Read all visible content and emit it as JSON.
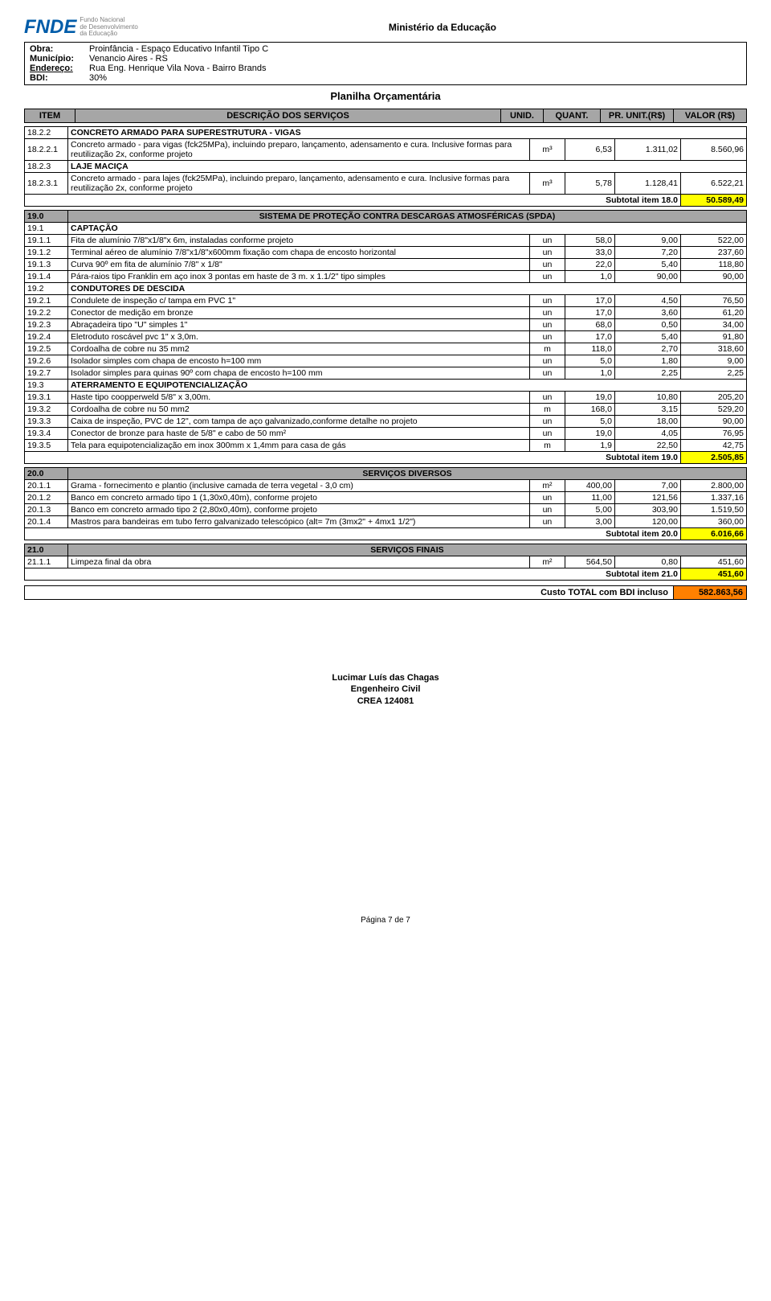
{
  "header": {
    "logo_mark": "FNDE",
    "logo_line1": "Fundo Nacional",
    "logo_line2": "de Desenvolvimento",
    "logo_line3": "da Educação",
    "ministry": "Ministério da Educação"
  },
  "project": {
    "obra_label": "Obra:",
    "obra": "Proinfância - Espaço Educativo Infantil Tipo C",
    "municipio_label": "Município:",
    "municipio": "Venancio Aires - RS",
    "endereco_label": "Endereço:",
    "endereco": "Rua Eng. Henrique Vila Nova - Bairro Brands",
    "bdi_label": "BDI:",
    "bdi": "30%"
  },
  "doc_title": "Planilha Orçamentária",
  "columns": {
    "item": "ITEM",
    "desc": "DESCRIÇÃO DOS SERVIÇOS",
    "unid": "UNID.",
    "quant": "QUANT.",
    "pr": "PR. UNIT.(R$)",
    "valor": "VALOR (R$)"
  },
  "group18": {
    "rows": [
      {
        "type": "section",
        "item": "18.2.2",
        "desc": "CONCRETO ARMADO PARA SUPERESTRUTURA - VIGAS"
      },
      {
        "type": "row",
        "item": "18.2.2.1",
        "desc": "Concreto armado - para vigas (fck25MPa), incluindo preparo, lançamento, adensamento e cura. Inclusive formas para reutilização 2x, conforme projeto",
        "unid": "m³",
        "quant": "6,53",
        "pr": "1.311,02",
        "valor": "8.560,96"
      },
      {
        "type": "section",
        "item": "18.2.3",
        "desc": "LAJE MACIÇA"
      },
      {
        "type": "row",
        "item": "18.2.3.1",
        "desc": "Concreto armado - para lajes (fck25MPa), incluindo preparo, lançamento, adensamento e cura. Inclusive formas para reutilização 2x, conforme projeto",
        "unid": "m³",
        "quant": "5,78",
        "pr": "1.128,41",
        "valor": "6.522,21"
      }
    ],
    "subtotal_label": "Subtotal item 18.0",
    "subtotal": "50.589,49"
  },
  "group19": {
    "head_item": "19.0",
    "head_desc": "SISTEMA DE PROTEÇÃO CONTRA DESCARGAS ATMOSFÉRICAS (SPDA)",
    "rows": [
      {
        "type": "section",
        "item": "19.1",
        "desc": "CAPTAÇÃO"
      },
      {
        "type": "row",
        "item": "19.1.1",
        "desc": "Fita de alumínio 7/8\"x1/8\"x 6m, instaladas conforme projeto",
        "unid": "un",
        "quant": "58,0",
        "pr": "9,00",
        "valor": "522,00"
      },
      {
        "type": "row",
        "item": "19.1.2",
        "desc": "Terminal aéreo de alumínio 7/8\"x1/8\"x600mm fixação com chapa de encosto horizontal",
        "unid": "un",
        "quant": "33,0",
        "pr": "7,20",
        "valor": "237,60"
      },
      {
        "type": "row",
        "item": "19.1.3",
        "desc": "Curva 90º em fita de alumínio 7/8\" x 1/8\"",
        "unid": "un",
        "quant": "22,0",
        "pr": "5,40",
        "valor": "118,80"
      },
      {
        "type": "row",
        "item": "19.1.4",
        "desc": "Pára-raios tipo Franklin em aço inox 3 pontas em haste de 3 m. x 1.1/2\" tipo simples",
        "unid": "un",
        "quant": "1,0",
        "pr": "90,00",
        "valor": "90,00"
      },
      {
        "type": "section",
        "item": "19.2",
        "desc": "CONDUTORES DE DESCIDA"
      },
      {
        "type": "row",
        "item": "19.2.1",
        "desc": "Condulete de inspeção c/ tampa em PVC 1\"",
        "unid": "un",
        "quant": "17,0",
        "pr": "4,50",
        "valor": "76,50"
      },
      {
        "type": "row",
        "item": "19.2.2",
        "desc": "Conector de medição em bronze",
        "unid": "un",
        "quant": "17,0",
        "pr": "3,60",
        "valor": "61,20"
      },
      {
        "type": "row",
        "item": "19.2.3",
        "desc": "Abraçadeira tipo \"U\" simples 1\"",
        "unid": "un",
        "quant": "68,0",
        "pr": "0,50",
        "valor": "34,00"
      },
      {
        "type": "row",
        "item": "19.2.4",
        "desc": "Eletroduto roscável pvc 1\" x 3,0m.",
        "unid": "un",
        "quant": "17,0",
        "pr": "5,40",
        "valor": "91,80"
      },
      {
        "type": "row",
        "item": "19.2.5",
        "desc": "Cordoalha de cobre nu 35 mm2",
        "unid": "m",
        "quant": "118,0",
        "pr": "2,70",
        "valor": "318,60"
      },
      {
        "type": "row",
        "item": "19.2.6",
        "desc": "Isolador simples com chapa de encosto h=100 mm",
        "unid": "un",
        "quant": "5,0",
        "pr": "1,80",
        "valor": "9,00"
      },
      {
        "type": "row",
        "item": "19.2.7",
        "desc": "Isolador simples para quinas 90º com chapa de encosto h=100 mm",
        "unid": "un",
        "quant": "1,0",
        "pr": "2,25",
        "valor": "2,25"
      },
      {
        "type": "section",
        "item": "19.3",
        "desc": "ATERRAMENTO E EQUIPOTENCIALIZAÇÃO"
      },
      {
        "type": "row",
        "item": "19.3.1",
        "desc": "Haste tipo coopperweld 5/8\" x 3,00m.",
        "unid": "un",
        "quant": "19,0",
        "pr": "10,80",
        "valor": "205,20"
      },
      {
        "type": "row",
        "item": "19.3.2",
        "desc": "Cordoalha de cobre nu 50 mm2",
        "unid": "m",
        "quant": "168,0",
        "pr": "3,15",
        "valor": "529,20"
      },
      {
        "type": "row",
        "item": "19.3.3",
        "desc": "Caixa de inspeção, PVC de 12\", com tampa de aço galvanizado,conforme detalhe no projeto",
        "unid": "un",
        "quant": "5,0",
        "pr": "18,00",
        "valor": "90,00"
      },
      {
        "type": "row",
        "item": "19.3.4",
        "desc": "Conector de bronze para haste de 5/8\" e cabo de 50 mm²",
        "unid": "un",
        "quant": "19,0",
        "pr": "4,05",
        "valor": "76,95"
      },
      {
        "type": "row",
        "item": "19.3.5",
        "desc": "Tela para equipotencialização em inox 300mm x 1,4mm para casa de gás",
        "unid": "m",
        "quant": "1,9",
        "pr": "22,50",
        "valor": "42,75"
      }
    ],
    "subtotal_label": "Subtotal item 19.0",
    "subtotal": "2.505,85"
  },
  "group20": {
    "head_item": "20.0",
    "head_desc": "SERVIÇOS DIVERSOS",
    "rows": [
      {
        "type": "row",
        "item": "20.1.1",
        "desc": "Grama - fornecimento e plantio (inclusive camada de terra vegetal - 3,0 cm)",
        "unid": "m²",
        "quant": "400,00",
        "pr": "7,00",
        "valor": "2.800,00"
      },
      {
        "type": "row",
        "item": "20.1.2",
        "desc": "Banco em concreto armado tipo 1 (1,30x0,40m), conforme projeto",
        "unid": "un",
        "quant": "11,00",
        "pr": "121,56",
        "valor": "1.337,16"
      },
      {
        "type": "row",
        "item": "20.1.3",
        "desc": "Banco em concreto armado tipo 2 (2,80x0,40m), conforme projeto",
        "unid": "un",
        "quant": "5,00",
        "pr": "303,90",
        "valor": "1.519,50"
      },
      {
        "type": "row",
        "item": "20.1.4",
        "desc": "Mastros para bandeiras em tubo ferro galvanizado telescópico (alt= 7m (3mx2\" + 4mx1 1/2\")",
        "unid": "un",
        "quant": "3,00",
        "pr": "120,00",
        "valor": "360,00"
      }
    ],
    "subtotal_label": "Subtotal item 20.0",
    "subtotal": "6.016,66"
  },
  "group21": {
    "head_item": "21.0",
    "head_desc": "SERVIÇOS FINAIS",
    "rows": [
      {
        "type": "row",
        "item": "21.1.1",
        "desc": "Limpeza final da obra",
        "unid": "m²",
        "quant": "564,50",
        "pr": "0,80",
        "valor": "451,60"
      }
    ],
    "subtotal_label": "Subtotal item 21.0",
    "subtotal": "451,60"
  },
  "total": {
    "label": "Custo TOTAL com BDI incluso",
    "value": "582.863,56"
  },
  "signature": {
    "name": "Lucimar Luís das Chagas",
    "title": "Engenheiro Civil",
    "crea": "CREA 124081"
  },
  "page": "Página 7 de 7"
}
